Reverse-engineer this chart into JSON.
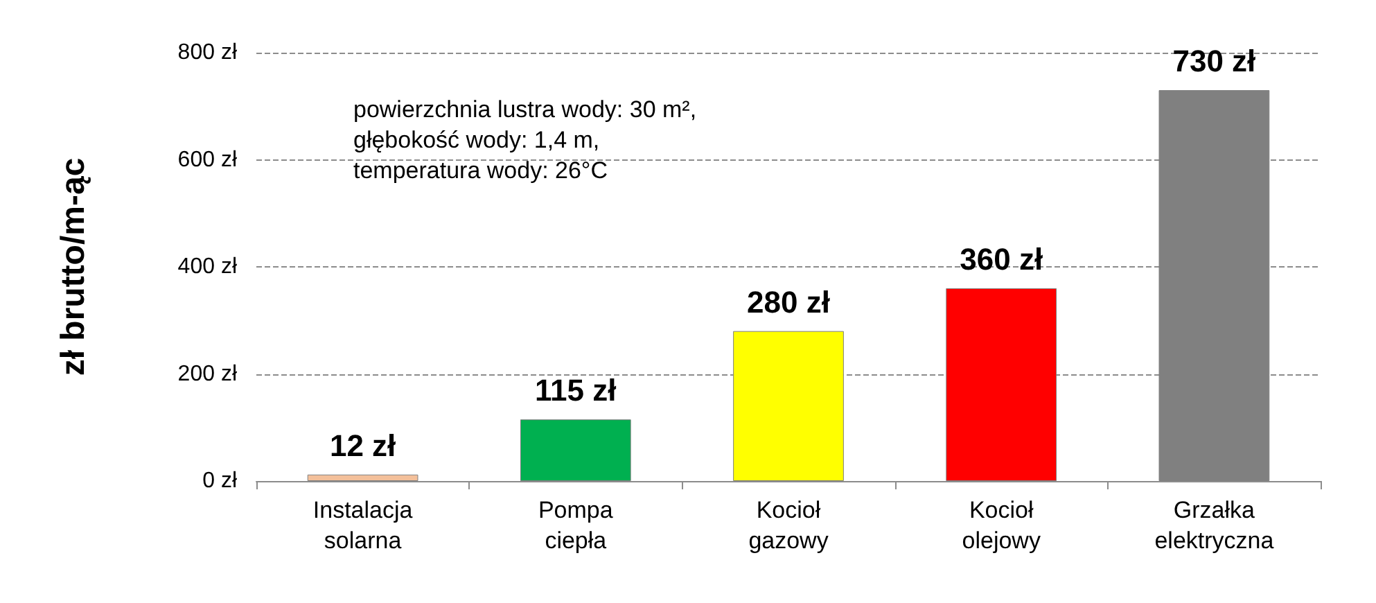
{
  "chart_data": {
    "type": "bar",
    "ylabel": "zł brutto/m-ąc",
    "categories": [
      "Instalacja\nsolarna",
      "Pompa\nciepła",
      "Kocioł\ngazowy",
      "Kocioł\nolejowy",
      "Grzałka\nelektryczna"
    ],
    "values": [
      12,
      115,
      280,
      360,
      730
    ],
    "colors": [
      "#f4c09a",
      "#00b050",
      "#ffff00",
      "#ff0000",
      "#808080"
    ],
    "value_labels": [
      "12 zł",
      "115 zł",
      "280 zł",
      "360 zł",
      "730 zł"
    ],
    "ylim": [
      0,
      800
    ],
    "yticks": [
      {
        "value": 0,
        "label": "0 zł"
      },
      {
        "value": 200,
        "label": "200 zł"
      },
      {
        "value": 400,
        "label": "400 zł"
      },
      {
        "value": 600,
        "label": "600 zł"
      },
      {
        "value": 800,
        "label": "800 zł"
      }
    ],
    "grid": "y",
    "annotations": [
      "powierzchnia lustra wody: 30 m²,\ngłębokość wody: 1,4 m,\ntemperatura wody: 26°C"
    ]
  }
}
